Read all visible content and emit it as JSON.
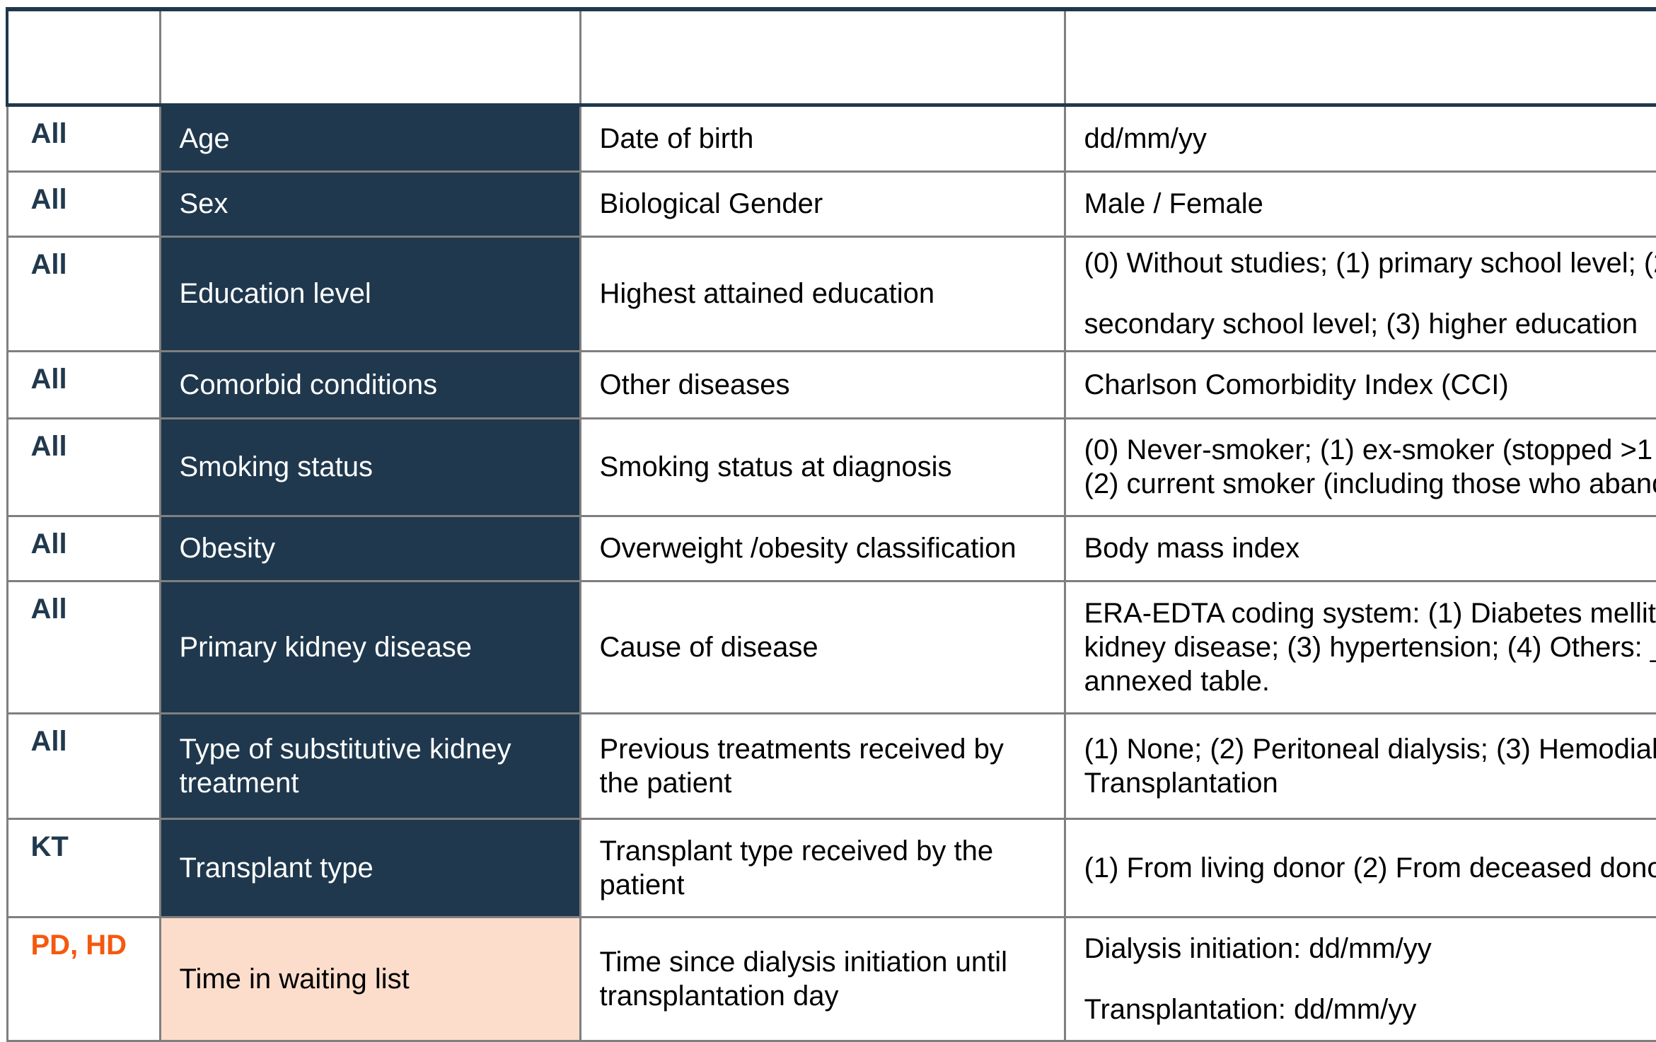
{
  "table": {
    "header_labels": [
      "",
      "",
      "",
      ""
    ],
    "colors": {
      "navy": "#1F384D",
      "navy_text": "#21394E",
      "orange": "#F4590F",
      "peach": "#FCDDCB",
      "border_gray": "#7F7F7F"
    },
    "rows": [
      {
        "cohort": "All",
        "cohort_style": "navy",
        "variable": "Age",
        "variable_style": "navy",
        "description": "Date of birth",
        "values": [
          [
            "dd/mm/yy"
          ]
        ]
      },
      {
        "cohort": "All",
        "cohort_style": "navy",
        "variable": "Sex",
        "variable_style": "navy",
        "description": "Biological Gender",
        "values": [
          [
            "Male / Female"
          ]
        ]
      },
      {
        "cohort": "All",
        "cohort_style": "navy",
        "variable": "Education level",
        "variable_style": "navy",
        "description": "Highest attained education",
        "values": [
          [
            "(0) Without studies; (1) primary school level; (2"
          ],
          [
            "secondary school level; (3) higher education"
          ]
        ]
      },
      {
        "cohort": "All",
        "cohort_style": "navy",
        "variable": "Comorbid conditions",
        "variable_style": "navy",
        "description": "Other diseases",
        "values": [
          [
            "Charlson Comorbidity Index (CCI)"
          ]
        ]
      },
      {
        "cohort": "All",
        "cohort_style": "navy",
        "variable": "Smoking status",
        "variable_style": "navy",
        "description": "Smoking status at diagnosis",
        "values": [
          [
            "(0) Never-smoker; (1) ex-smoker (stopped >1",
            "(2) current smoker (including those who aband"
          ]
        ]
      },
      {
        "cohort": "All",
        "cohort_style": "navy",
        "variable": "Obesity",
        "variable_style": "navy",
        "description": "Overweight /obesity classification",
        "values": [
          [
            "Body mass index"
          ]
        ]
      },
      {
        "cohort": "All",
        "cohort_style": "navy",
        "variable": "Primary kidney disease",
        "variable_style": "navy",
        "description": "Cause of disease",
        "values": [
          [
            "ERA-EDTA coding system: (1) Diabetes mellit",
            "kidney disease; (3) hypertension; (4) Others: _",
            "annexed table."
          ]
        ]
      },
      {
        "cohort": "All",
        "cohort_style": "navy",
        "variable": "Type of substitutive kidney treatment",
        "variable_style": "navy",
        "description": "Previous treatments received by the patient",
        "values": [
          [
            "(1) None; (2) Peritoneal dialysis; (3) Hemodialy",
            "Transplantation"
          ]
        ]
      },
      {
        "cohort": "KT",
        "cohort_style": "navy",
        "variable": "Transplant type",
        "variable_style": "navy",
        "description": "Transplant type received by the patient",
        "values": [
          [
            "(1) From living donor (2) From deceased dono"
          ]
        ]
      },
      {
        "cohort": "PD, HD",
        "cohort_style": "orange",
        "variable": "Time in waiting list",
        "variable_style": "peach",
        "description": "Time since dialysis initiation until transplantation day",
        "values": [
          [
            "Dialysis initiation: dd/mm/yy"
          ],
          [
            "Transplantation: dd/mm/yy"
          ]
        ]
      }
    ]
  }
}
